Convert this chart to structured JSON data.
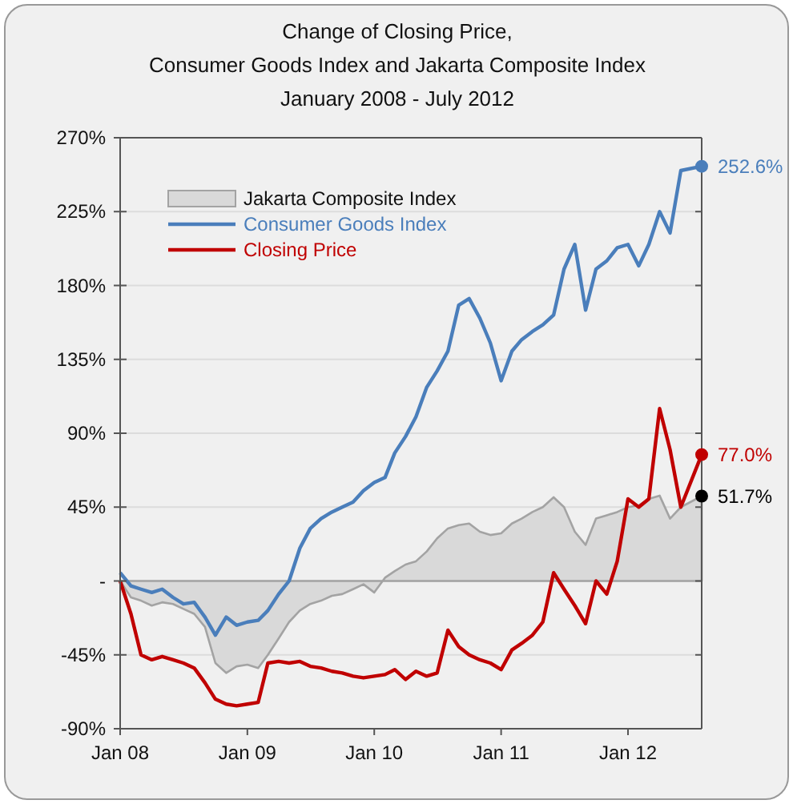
{
  "chart_data": {
    "type": "line",
    "title": "Change of Closing Price,\nConsumer Goods Index and Jakarta Composite Index",
    "subtitle": "January 2008 - July 2012",
    "x": [
      "2008-01",
      "2008-02",
      "2008-03",
      "2008-04",
      "2008-05",
      "2008-06",
      "2008-07",
      "2008-08",
      "2008-09",
      "2008-10",
      "2008-11",
      "2008-12",
      "2009-01",
      "2009-02",
      "2009-03",
      "2009-04",
      "2009-05",
      "2009-06",
      "2009-07",
      "2009-08",
      "2009-09",
      "2009-10",
      "2009-11",
      "2009-12",
      "2010-01",
      "2010-02",
      "2010-03",
      "2010-04",
      "2010-05",
      "2010-06",
      "2010-07",
      "2010-08",
      "2010-09",
      "2010-10",
      "2010-11",
      "2010-12",
      "2011-01",
      "2011-02",
      "2011-03",
      "2011-04",
      "2011-05",
      "2011-06",
      "2011-07",
      "2011-08",
      "2011-09",
      "2011-10",
      "2011-11",
      "2011-12",
      "2012-01",
      "2012-02",
      "2012-03",
      "2012-04",
      "2012-05",
      "2012-06",
      "2012-07-31"
    ],
    "series": [
      {
        "name": "Jakarta Composite Index",
        "type": "area",
        "color": "#d9d9d9",
        "values": [
          0,
          -10,
          -12,
          -15,
          -13,
          -14,
          -17,
          -20,
          -28,
          -50,
          -56,
          -52,
          -51,
          -53,
          -45,
          -35,
          -25,
          -18,
          -14,
          -12,
          -9,
          -8,
          -5,
          -2,
          -7,
          2,
          6,
          10,
          12,
          18,
          26,
          32,
          34,
          35,
          30,
          28,
          29,
          35,
          38,
          42,
          45,
          51,
          45,
          30,
          22,
          38,
          40,
          42,
          45,
          46,
          50,
          52,
          38,
          45,
          51.7
        ],
        "value_labels": [
          null,
          null,
          null,
          null,
          null,
          null,
          null,
          null,
          null,
          null,
          null,
          null,
          null,
          null,
          null,
          null,
          null,
          null,
          null,
          null,
          null,
          null,
          null,
          null,
          null,
          null,
          null,
          null,
          null,
          null,
          null,
          null,
          null,
          null,
          null,
          null,
          null,
          null,
          null,
          null,
          null,
          null,
          null,
          null,
          null,
          null,
          null,
          null,
          null,
          null,
          null,
          null,
          null,
          null,
          "51.7%"
        ]
      },
      {
        "name": "Consumer Goods Index",
        "color": "#4a7ebb",
        "values": [
          5,
          -3,
          -5,
          -7,
          -5,
          -10,
          -14,
          -13,
          -22,
          -33,
          -22,
          -27,
          -25,
          -24,
          -18,
          -8,
          0,
          20,
          32,
          38,
          42,
          45,
          48,
          55,
          60,
          63,
          78,
          88,
          100,
          118,
          128,
          140,
          168,
          172,
          160,
          145,
          122,
          140,
          147,
          152,
          156,
          162,
          190,
          205,
          165,
          190,
          195,
          203,
          205,
          192,
          205,
          225,
          212,
          250,
          252.6
        ],
        "value_labels": [
          null,
          null,
          null,
          null,
          null,
          null,
          null,
          null,
          null,
          null,
          null,
          null,
          null,
          null,
          null,
          null,
          null,
          null,
          null,
          null,
          null,
          null,
          null,
          null,
          null,
          null,
          null,
          null,
          null,
          null,
          null,
          null,
          null,
          null,
          null,
          null,
          null,
          null,
          null,
          null,
          null,
          null,
          null,
          null,
          null,
          null,
          null,
          null,
          null,
          null,
          null,
          null,
          null,
          null,
          "252.6%"
        ]
      },
      {
        "name": "Closing Price",
        "color": "#c00000",
        "values": [
          0,
          -20,
          -45,
          -48,
          -46,
          -48,
          -50,
          -53,
          -62,
          -72,
          -75,
          -76,
          -75,
          -74,
          -50,
          -49,
          -50,
          -49,
          -52,
          -53,
          -55,
          -56,
          -58,
          -59,
          -58,
          -57,
          -54,
          -60,
          -55,
          -58,
          -56,
          -30,
          -40,
          -45,
          -48,
          -50,
          -54,
          -42,
          -38,
          -33,
          -25,
          5,
          -5,
          -15,
          -26,
          0,
          -8,
          12,
          50,
          45,
          50,
          105,
          80,
          45,
          77
        ],
        "value_labels": [
          null,
          null,
          null,
          null,
          null,
          null,
          null,
          null,
          null,
          null,
          null,
          null,
          null,
          null,
          null,
          null,
          null,
          null,
          null,
          null,
          null,
          null,
          null,
          null,
          null,
          null,
          null,
          null,
          null,
          null,
          null,
          null,
          null,
          null,
          null,
          null,
          null,
          null,
          null,
          null,
          null,
          null,
          null,
          null,
          null,
          null,
          null,
          null,
          null,
          null,
          null,
          null,
          null,
          null,
          "77.0%"
        ]
      }
    ],
    "xlim": [
      "2008-01-01",
      "2012-07-31"
    ],
    "xticks": [
      {
        "value": "2008-01-01",
        "label": "Jan 08"
      },
      {
        "value": "2009-01-01",
        "label": "Jan 09"
      },
      {
        "value": "2010-01-01",
        "label": "Jan 10"
      },
      {
        "value": "2011-01-01",
        "label": "Jan 11"
      },
      {
        "value": "2012-01-01",
        "label": "Jan 12"
      }
    ],
    "ylim": [
      -90,
      270
    ],
    "yticks": [
      {
        "value": -90,
        "label": "-90%"
      },
      {
        "value": -45,
        "label": "-45%"
      },
      {
        "value": 0,
        "label": "-"
      },
      {
        "value": 45,
        "label": "45%"
      },
      {
        "value": 90,
        "label": "90%"
      },
      {
        "value": 135,
        "label": "135%"
      },
      {
        "value": 180,
        "label": "180%"
      },
      {
        "value": 225,
        "label": "225%"
      },
      {
        "value": 270,
        "label": "270%"
      }
    ],
    "grid": "y",
    "legend": "top left",
    "line_style": "solid",
    "marker": "none"
  }
}
